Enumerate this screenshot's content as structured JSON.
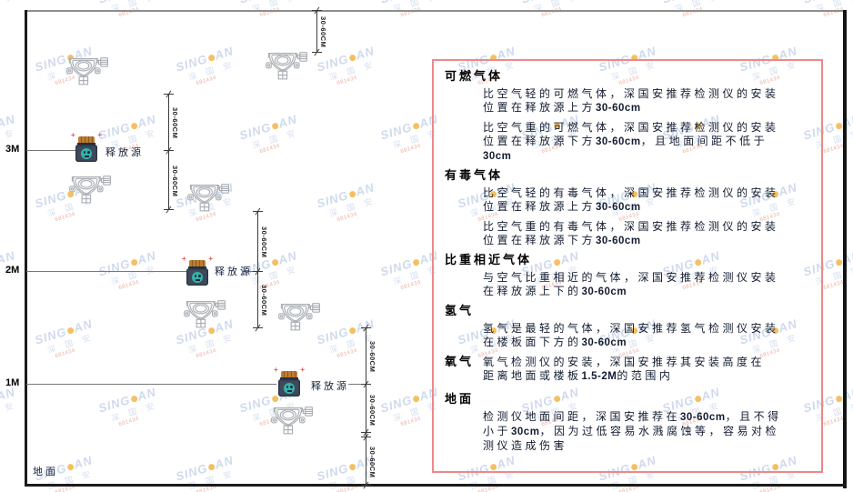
{
  "watermark": {
    "brand_left": "SING",
    "brand_right": "AN",
    "cjk": "深 国 安",
    "code": "681434",
    "colors": {
      "text": "#c3d1e8",
      "dot": "#f2b13d",
      "code": "#e59a86"
    }
  },
  "diagram": {
    "height_labels": [
      "3M",
      "2M",
      "1M"
    ],
    "source_label": "释放源",
    "ground_label": "地面",
    "dim_label": "30-60CM",
    "colors": {
      "wall": "#1b1b1b",
      "ceiling": "#8e8e8e",
      "dimension": "#3c3c3c",
      "detector_outline": "#a9aeb4",
      "source_body": "#3e4a5c",
      "source_cap": "#bd7c32",
      "source_emblem": "#35b2aa",
      "spark": "#e2574d"
    }
  },
  "panel": {
    "border_color": "#ef8888",
    "sections": [
      {
        "heading": "可燃气体",
        "inline": false,
        "paragraphs": [
          [
            {
              "t": "比空气轻的可燃气体，深国安推荐检测仪的安装位置在释放源上方",
              "b": false
            },
            {
              "t": "30-60cm",
              "b": true
            }
          ],
          [
            {
              "t": "比空气重的可燃气体，深国安推荐检测仪的安装位置在释放源下方",
              "b": false
            },
            {
              "t": "30-60cm",
              "b": true
            },
            {
              "t": "，且地面间距不低于",
              "b": false
            },
            {
              "t": "30cm",
              "b": true
            }
          ]
        ]
      },
      {
        "heading": "有毒气体",
        "inline": false,
        "paragraphs": [
          [
            {
              "t": "比空气轻的有毒气体，深国安推荐检测仪的安装位置在释放源上方",
              "b": false
            },
            {
              "t": "30-60cm",
              "b": true
            }
          ],
          [
            {
              "t": "比空气重的有毒气体，深国安推荐检测仪的安装位置在释放源下方",
              "b": false
            },
            {
              "t": "30-60cm",
              "b": true
            }
          ]
        ]
      },
      {
        "heading": "比重相近气体",
        "inline": false,
        "paragraphs": [
          [
            {
              "t": "与空气比重相近的气体，深国安推荐检测仪安装在释放源上下的",
              "b": false
            },
            {
              "t": "30-60cm",
              "b": true
            }
          ]
        ]
      },
      {
        "heading": "氢气",
        "inline": false,
        "paragraphs": [
          [
            {
              "t": "氢气是最轻的气体，深国安推荐氢气检测仪安装在楼板面下方的",
              "b": false
            },
            {
              "t": "30-60cm",
              "b": true
            }
          ]
        ]
      },
      {
        "heading": "氧气",
        "inline": true,
        "paragraphs": [
          [
            {
              "t": "氧气检测仪的安装，深国安推荐其安装高度在距离地面或楼板",
              "b": false
            },
            {
              "t": "1.5-2M",
              "b": true
            },
            {
              "t": "的范围内",
              "b": false
            }
          ]
        ]
      },
      {
        "heading": "地面",
        "inline": false,
        "paragraphs": [
          [
            {
              "t": "检测仪地面间距，深国安推荐在",
              "b": false
            },
            {
              "t": "30-60cm",
              "b": true
            },
            {
              "t": "，且不得小于",
              "b": false
            },
            {
              "t": "30cm",
              "b": true
            },
            {
              "t": "，因为过低容易水溅腐蚀等，容易对检测仪造成伤害",
              "b": false
            }
          ]
        ]
      }
    ]
  }
}
